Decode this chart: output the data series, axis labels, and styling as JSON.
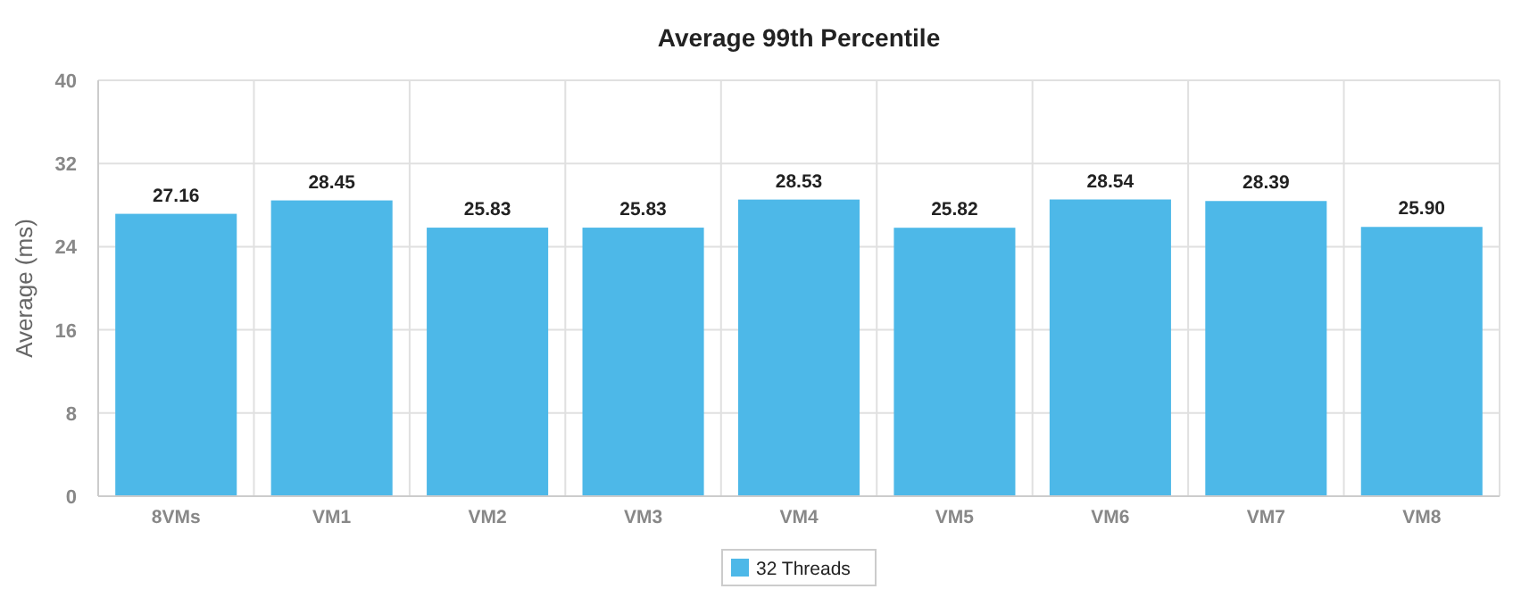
{
  "chart_data": {
    "type": "bar",
    "title": "Average 99th Percentile",
    "ylabel": "Average (ms)",
    "categories": [
      "8VMs",
      "VM1",
      "VM2",
      "VM3",
      "VM4",
      "VM5",
      "VM6",
      "VM7",
      "VM8"
    ],
    "series": [
      {
        "name": "32 Threads",
        "color": "#4db8e8",
        "values": [
          27.16,
          28.45,
          25.83,
          25.83,
          28.53,
          25.82,
          28.54,
          28.39,
          25.9
        ]
      }
    ],
    "ylim": [
      0,
      40
    ],
    "yticks": [
      0,
      8,
      16,
      24,
      32,
      40
    ],
    "grid": true,
    "legend": "bottom",
    "value_labels": [
      "27.16",
      "28.45",
      "25.83",
      "25.83",
      "28.53",
      "25.82",
      "28.54",
      "28.39",
      "25.90"
    ]
  }
}
